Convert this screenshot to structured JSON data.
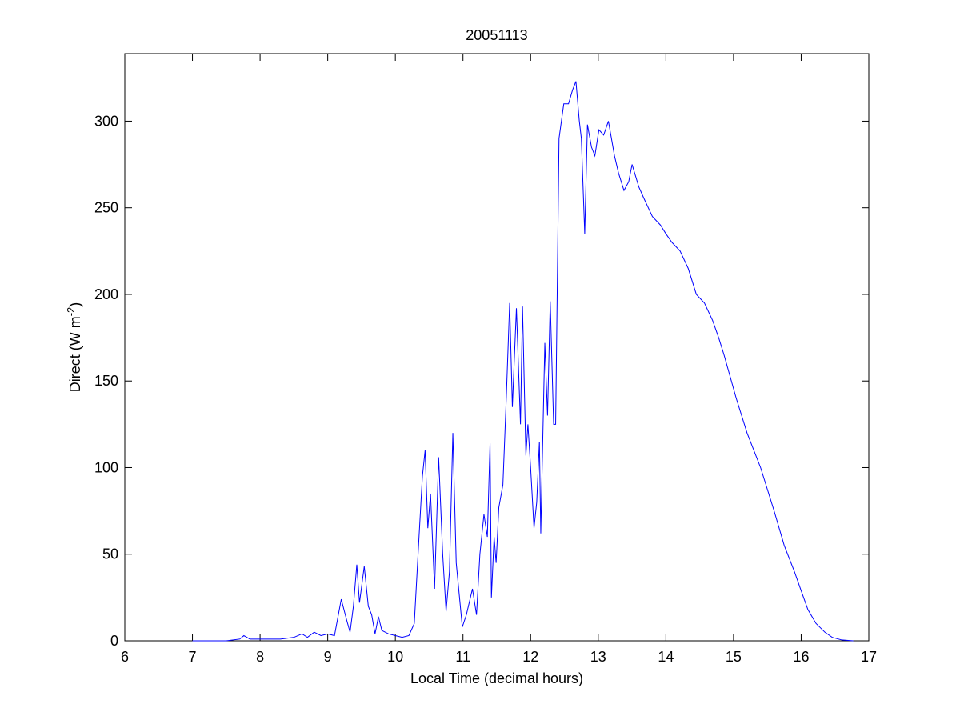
{
  "chart_data": {
    "type": "line",
    "title": "20051113",
    "xlabel": "Local Time (decimal hours)",
    "ylabel": [
      "Direct (W m",
      "-2",
      ")"
    ],
    "color": "#0000ff",
    "xlim": [
      6,
      17
    ],
    "ylim": [
      0,
      339
    ],
    "xticks": [
      6,
      7,
      8,
      9,
      10,
      11,
      12,
      13,
      14,
      15,
      16,
      17
    ],
    "yticks": [
      0,
      50,
      100,
      150,
      200,
      250,
      300
    ],
    "grid": false,
    "x": [
      7.0,
      7.5,
      7.7,
      7.76,
      7.85,
      8.0,
      8.3,
      8.5,
      8.62,
      8.7,
      8.8,
      8.9,
      9.0,
      9.1,
      9.2,
      9.28,
      9.33,
      9.38,
      9.43,
      9.47,
      9.54,
      9.6,
      9.65,
      9.7,
      9.75,
      9.8,
      9.9,
      10.0,
      10.1,
      10.2,
      10.28,
      10.35,
      10.4,
      10.44,
      10.48,
      10.52,
      10.58,
      10.64,
      10.7,
      10.75,
      10.8,
      10.85,
      10.9,
      10.99,
      11.05,
      11.14,
      11.2,
      11.25,
      11.31,
      11.36,
      11.4,
      11.42,
      11.46,
      11.49,
      11.53,
      11.59,
      11.64,
      11.69,
      11.73,
      11.79,
      11.85,
      11.88,
      11.93,
      11.96,
      12.0,
      12.05,
      12.09,
      12.13,
      12.15,
      12.21,
      12.25,
      12.29,
      12.34,
      12.37,
      12.42,
      12.49,
      12.56,
      12.62,
      12.67,
      12.72,
      12.75,
      12.8,
      12.84,
      12.9,
      12.95,
      13.01,
      13.08,
      13.15,
      13.24,
      13.3,
      13.38,
      13.45,
      13.5,
      13.6,
      13.68,
      13.8,
      13.92,
      14.0,
      14.09,
      14.21,
      14.33,
      14.45,
      14.57,
      14.69,
      14.78,
      14.86,
      15.04,
      15.2,
      15.4,
      15.6,
      15.75,
      15.9,
      15.99,
      16.1,
      16.22,
      16.35,
      16.46,
      16.6,
      16.77
    ],
    "values": [
      0,
      0,
      1,
      3,
      1,
      1,
      1,
      2,
      4,
      2,
      5,
      3,
      4,
      3,
      24,
      12,
      5,
      20,
      44,
      22,
      43,
      20,
      15,
      4,
      14,
      6,
      4,
      3,
      2,
      3,
      10,
      60,
      95,
      110,
      65,
      85,
      30,
      106,
      50,
      17,
      40,
      120,
      45,
      8,
      15,
      30,
      15,
      50,
      73,
      60,
      114,
      25,
      60,
      45,
      77,
      90,
      140,
      195,
      135,
      192,
      125,
      193,
      107,
      125,
      100,
      65,
      80,
      115,
      62,
      172,
      130,
      196,
      125,
      125,
      290,
      310,
      310,
      318,
      323,
      300,
      290,
      235,
      298,
      285,
      280,
      295,
      292,
      300,
      280,
      270,
      260,
      265,
      275,
      262,
      255,
      245,
      240,
      235,
      230,
      225,
      215,
      200,
      195,
      185,
      175,
      165,
      140,
      120,
      100,
      75,
      55,
      40,
      30,
      18,
      10,
      5,
      2,
      0.5,
      0
    ]
  }
}
